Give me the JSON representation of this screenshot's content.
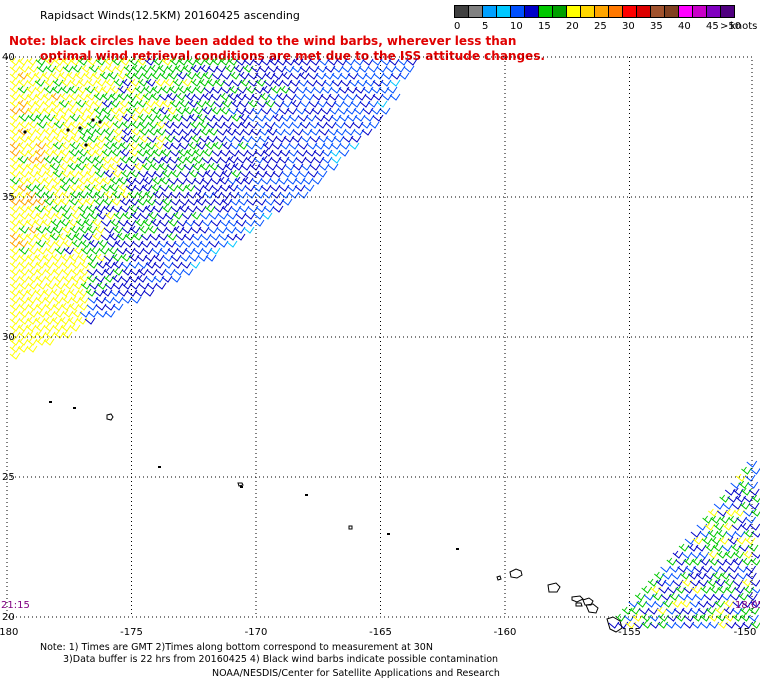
{
  "header": {
    "title": "Rapidsact Winds(12.5KM) 20160425 ascending"
  },
  "note": {
    "line1": "Note: black circles have been added to the wind barbs, wherever less than",
    "line2": "optimal wind retrieval conditions are met due to the ISS attitude changes."
  },
  "legend": {
    "unit": "knots",
    "bins": [
      {
        "label": "0",
        "color": "#404040"
      },
      {
        "label": "",
        "color": "#808080"
      },
      {
        "label": "5",
        "color": "#00a0ff"
      },
      {
        "label": "",
        "color": "#00c8ff"
      },
      {
        "label": "10",
        "color": "#0050ff"
      },
      {
        "label": "",
        "color": "#0000c8"
      },
      {
        "label": "15",
        "color": "#00c800"
      },
      {
        "label": "",
        "color": "#00a000"
      },
      {
        "label": "20",
        "color": "#ffff00"
      },
      {
        "label": "",
        "color": "#ffd700"
      },
      {
        "label": "25",
        "color": "#ffa500"
      },
      {
        "label": "",
        "color": "#ff7800"
      },
      {
        "label": "30",
        "color": "#ff0000"
      },
      {
        "label": "",
        "color": "#dc0000"
      },
      {
        "label": "35",
        "color": "#a0522d"
      },
      {
        "label": "",
        "color": "#804020"
      },
      {
        "label": "40",
        "color": "#ff00ff"
      },
      {
        "label": "",
        "color": "#c800c8"
      },
      {
        "label": "45",
        "color": "#8000c0"
      },
      {
        "label": ">50",
        "color": "#500080"
      }
    ]
  },
  "axes": {
    "lon_labels": [
      "-180",
      "-175",
      "-170",
      "-165",
      "-160",
      "-155",
      "-150"
    ],
    "lat_labels": [
      "40",
      "35",
      "30",
      "25",
      "20"
    ]
  },
  "times": {
    "left": "21:15",
    "right": "18:05"
  },
  "footer": {
    "line1": "Note: 1) Times are GMT 2)Times along bottom correspond to measurement at 30N",
    "line2": "3)Data buffer is 22 hrs from 20160425 4) Black wind barbs indicate possible contamination",
    "line3": "NOAA/NESDIS/Center for Satellite Applications and Research"
  },
  "map_colors": {
    "grid": "#000000",
    "coast": "#000000"
  }
}
